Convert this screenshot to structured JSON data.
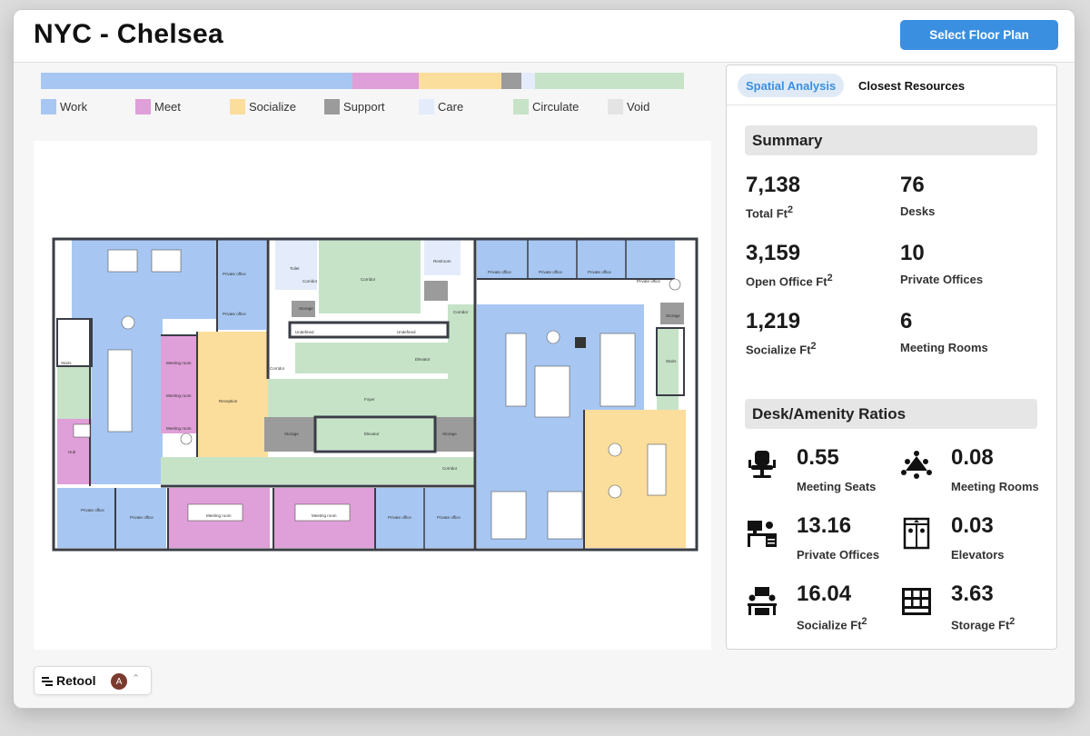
{
  "header": {
    "title": "NYC - Chelsea",
    "select_button": "Select Floor Plan"
  },
  "legend": {
    "segments": [
      {
        "key": "work",
        "color": "#a7c7f2",
        "share": 0.47
      },
      {
        "key": "meet",
        "color": "#df9fd8",
        "share": 0.1
      },
      {
        "key": "socialize",
        "color": "#fbdd9c",
        "share": 0.125
      },
      {
        "key": "support",
        "color": "#9b9b9b",
        "share": 0.03
      },
      {
        "key": "care",
        "color": "#e4ecfb",
        "share": 0.02
      },
      {
        "key": "circulate",
        "color": "#c6e3c8",
        "share": 0.225
      }
    ],
    "items": [
      {
        "label": "Work",
        "color": "#a7c7f2"
      },
      {
        "label": "Meet",
        "color": "#df9fd8"
      },
      {
        "label": "Socialize",
        "color": "#fbdd9c"
      },
      {
        "label": "Support",
        "color": "#9b9b9b"
      },
      {
        "label": "Care",
        "color": "#e4ecfb"
      },
      {
        "label": "Circulate",
        "color": "#c6e3c8"
      },
      {
        "label": "Void",
        "color": "#e4e4e4"
      }
    ]
  },
  "floorplan": {
    "colors": {
      "work": "#a7c7f2",
      "meet": "#df9fd8",
      "socialize": "#fbdd9c",
      "support": "#9b9b9b",
      "circulate": "#c6e3c8",
      "wall": "#3a3d45"
    },
    "labels": {
      "private_office": "Private office",
      "meeting_room": "Meeting room",
      "reception": "Reception",
      "toilet": "Toilet",
      "restroom": "Restroom",
      "corridor": "Corridor",
      "foyer": "Foyer",
      "elevator": "Elevator",
      "storage": "Storage",
      "undefined": "Undefined",
      "hub": "Hub",
      "stairs": "Stairs"
    }
  },
  "panel": {
    "tabs": {
      "spatial": "Spatial Analysis",
      "closest": "Closest Resources"
    },
    "summary": {
      "title": "Summary",
      "stats": [
        {
          "value": "7,138",
          "label": "Total Ft",
          "sup": "2"
        },
        {
          "value": "76",
          "label": "Desks",
          "sup": ""
        },
        {
          "value": "3,159",
          "label": "Open Office Ft",
          "sup": "2"
        },
        {
          "value": "10",
          "label": "Private Offices",
          "sup": ""
        },
        {
          "value": "1,219",
          "label": "Socialize Ft",
          "sup": "2"
        },
        {
          "value": "6",
          "label": "Meeting Rooms",
          "sup": ""
        }
      ]
    },
    "ratios": {
      "title": "Desk/Amenity Ratios",
      "items": [
        {
          "icon": "chair-icon",
          "value": "0.55",
          "label": "Meeting Seats",
          "sup": ""
        },
        {
          "icon": "meeting-table-icon",
          "value": "0.08",
          "label": "Meeting Rooms",
          "sup": ""
        },
        {
          "icon": "office-desk-icon",
          "value": "13.16",
          "label": "Private Offices",
          "sup": ""
        },
        {
          "icon": "elevator-icon",
          "value": "0.03",
          "label": "Elevators",
          "sup": ""
        },
        {
          "icon": "people-table-icon",
          "value": "16.04",
          "label": "Socialize Ft",
          "sup": "2"
        },
        {
          "icon": "storage-shelf-icon",
          "value": "3.63",
          "label": "Storage Ft",
          "sup": "2"
        }
      ]
    }
  },
  "footer": {
    "brand": "Retool",
    "avatar_initial": "A"
  }
}
